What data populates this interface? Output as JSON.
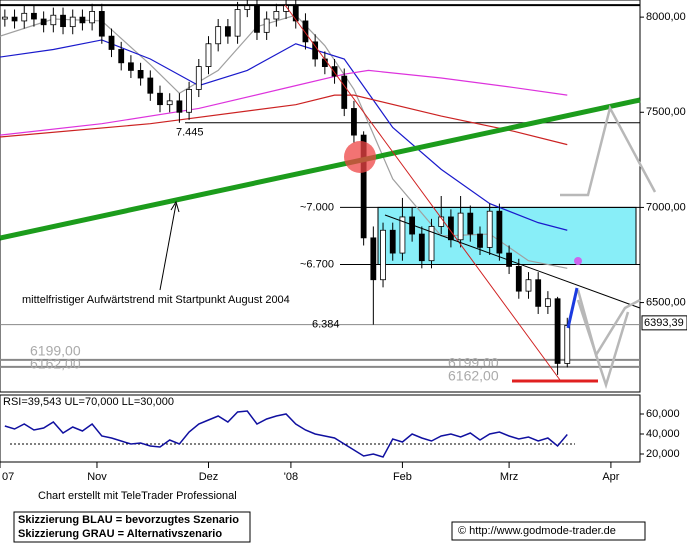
{
  "chart_data": [
    {
      "type": "candlestick",
      "x": [
        0,
        2,
        4,
        6,
        8,
        10,
        12,
        14,
        16,
        18,
        20,
        22,
        24,
        26,
        28,
        30,
        32,
        34,
        36,
        38,
        40,
        42,
        44,
        46,
        48,
        50,
        52,
        54,
        56,
        58,
        60,
        62,
        64,
        66,
        68,
        70,
        72,
        74,
        76,
        78,
        80,
        82,
        84,
        86,
        88,
        90,
        92,
        94,
        96,
        98,
        100,
        102,
        104,
        106,
        108,
        110,
        112,
        114,
        116
      ],
      "open": [
        7990,
        8000,
        7980,
        8020,
        7990,
        7960,
        8010,
        7950,
        8000,
        7970,
        8030,
        7900,
        7830,
        7760,
        7720,
        7680,
        7600,
        7540,
        7560,
        7500,
        7620,
        7740,
        7860,
        7950,
        7900,
        8040,
        8060,
        7920,
        7990,
        8030,
        8060,
        7980,
        7870,
        7780,
        7740,
        7690,
        7520,
        7380,
        6840,
        6620,
        6880,
        6760,
        6950,
        6860,
        6720,
        6900,
        6950,
        6830,
        6970,
        6860,
        6790,
        6980,
        6760,
        6690,
        6560,
        6620,
        6480,
        6520,
        6180
      ],
      "high": [
        8040,
        8040,
        8060,
        8060,
        8030,
        8050,
        8050,
        8040,
        8040,
        8070,
        8070,
        7940,
        7870,
        7800,
        7760,
        7720,
        7640,
        7600,
        7600,
        7660,
        7780,
        7900,
        7990,
        7990,
        8080,
        8090,
        8090,
        8030,
        8070,
        8090,
        8090,
        8020,
        7910,
        7820,
        7780,
        7730,
        7560,
        7400,
        6900,
        6920,
        6920,
        7050,
        7000,
        6900,
        6940,
        7060,
        6990,
        7060,
        7010,
        6900,
        7020,
        7020,
        6800,
        6730,
        6660,
        6660,
        6560,
        6530,
        6420
      ],
      "low": [
        7950,
        7940,
        7940,
        7950,
        7920,
        7920,
        7910,
        7910,
        7930,
        7930,
        7860,
        7790,
        7720,
        7680,
        7640,
        7560,
        7500,
        7500,
        7445,
        7460,
        7580,
        7700,
        7820,
        7860,
        7860,
        8000,
        7880,
        7880,
        7950,
        7990,
        7940,
        7830,
        7740,
        7700,
        7650,
        7480,
        7340,
        6800,
        6384,
        6580,
        6720,
        6720,
        6820,
        6680,
        6680,
        6860,
        6790,
        6790,
        6820,
        6750,
        6750,
        6720,
        6650,
        6520,
        6520,
        6440,
        6440,
        6120,
        6160
      ],
      "close": [
        8000,
        7980,
        8020,
        7990,
        7960,
        8010,
        7950,
        8000,
        7970,
        8030,
        7900,
        7830,
        7760,
        7720,
        7680,
        7600,
        7540,
        7560,
        7500,
        7620,
        7740,
        7860,
        7950,
        7900,
        8040,
        8060,
        7920,
        7990,
        8030,
        8060,
        7980,
        7870,
        7780,
        7740,
        7690,
        7520,
        7380,
        6840,
        6620,
        6880,
        6760,
        6950,
        6860,
        6720,
        6900,
        6950,
        6830,
        6970,
        6860,
        6790,
        6980,
        6760,
        6690,
        6560,
        6620,
        6480,
        6520,
        6180,
        6380
      ],
      "up_color": "#ffffff",
      "down_color": "#000000",
      "xlim": [
        -1,
        131
      ],
      "xticks": [
        {
          "value": -1,
          "label": "07"
        },
        {
          "value": 19,
          "label": "Nov"
        },
        {
          "value": 42,
          "label": "Dez"
        },
        {
          "value": 59,
          "label": "'08"
        },
        {
          "value": 82,
          "label": "Feb"
        },
        {
          "value": 104,
          "label": "Mrz"
        },
        {
          "value": 125,
          "label": "Apr"
        }
      ],
      "ylim": [
        6030,
        8090
      ],
      "yticks": [
        {
          "value": 8000,
          "label": "8000,00"
        },
        {
          "value": 7500,
          "label": "7500,00"
        },
        {
          "value": 7000,
          "label": "7000,00"
        },
        {
          "value": 6500,
          "label": "6500,00"
        }
      ],
      "last_price": {
        "value": 6393.39,
        "label": "6393,39"
      },
      "overlays": [
        {
          "color": "#a0a0a0",
          "x": [
            -1,
            10,
            20,
            30,
            36,
            44,
            52,
            60,
            66,
            72,
            80,
            90,
            100,
            108,
            116
          ],
          "values": [
            7900,
            7990,
            7980,
            7750,
            7600,
            7720,
            7950,
            8010,
            7850,
            7620,
            7150,
            6850,
            6860,
            6720,
            6680
          ]
        },
        {
          "color": "#1a1acc",
          "x": [
            -1,
            10,
            20,
            30,
            40,
            50,
            60,
            70,
            80,
            90,
            100,
            110,
            116
          ],
          "values": [
            7790,
            7830,
            7880,
            7780,
            7640,
            7720,
            7860,
            7780,
            7420,
            7200,
            7020,
            6920,
            6880
          ]
        },
        {
          "color": "#dd33dd",
          "x": [
            -1,
            20,
            40,
            60,
            70,
            75,
            90,
            105,
            116
          ],
          "values": [
            7380,
            7440,
            7520,
            7640,
            7700,
            7720,
            7680,
            7630,
            7590
          ]
        },
        {
          "color": "#cc2222",
          "x": [
            -1,
            30,
            60,
            68,
            72,
            90,
            105,
            116
          ],
          "values": [
            7370,
            7440,
            7540,
            7590,
            7590,
            7480,
            7400,
            7330
          ]
        }
      ],
      "top_line": 8063,
      "levels": [
        {
          "value": 7445,
          "label": "7.445",
          "color": "#000000"
        },
        {
          "value": 7000,
          "label": "~7.000",
          "color": "#000000"
        },
        {
          "value": 6700,
          "label": "~6.700",
          "color": "#000000"
        },
        {
          "value": 6384,
          "label": "6.384",
          "color": "#888888"
        },
        {
          "value": 6199,
          "label": "6199,00",
          "color": "#888888"
        },
        {
          "value": 6162,
          "label": "6162,00",
          "color": "#888888"
        }
      ],
      "zone_color": "#88eef8",
      "annotation": "mittelfristiger Aufwärtstrend mit Startpunkt August 2004"
    },
    {
      "type": "line",
      "title": "RSI=39,543 UL=70,000 LL=30,000",
      "color": "#1010a0",
      "x": [
        0,
        2,
        4,
        6,
        8,
        10,
        12,
        14,
        16,
        18,
        20,
        22,
        24,
        26,
        28,
        30,
        32,
        34,
        36,
        38,
        40,
        42,
        44,
        46,
        48,
        50,
        52,
        54,
        56,
        58,
        60,
        62,
        64,
        66,
        68,
        70,
        72,
        74,
        76,
        78,
        80,
        82,
        84,
        86,
        88,
        90,
        92,
        94,
        96,
        98,
        100,
        102,
        104,
        106,
        108,
        110,
        112,
        114,
        116
      ],
      "values": [
        48,
        45,
        50,
        44,
        46,
        52,
        41,
        47,
        43,
        50,
        38,
        36,
        33,
        30,
        31,
        28,
        27,
        34,
        30,
        42,
        50,
        54,
        58,
        52,
        62,
        63,
        50,
        55,
        58,
        60,
        50,
        44,
        40,
        38,
        36,
        30,
        24,
        18,
        20,
        17,
        35,
        32,
        40,
        36,
        33,
        38,
        40,
        37,
        41,
        34,
        40,
        42,
        38,
        35,
        37,
        33,
        36,
        28,
        39.543
      ],
      "lower_band": 30,
      "ylim": [
        12,
        79
      ],
      "yticks": [
        {
          "value": 60,
          "label": "60,000"
        },
        {
          "value": 40,
          "label": "40,000"
        },
        {
          "value": 20,
          "label": "20,000"
        }
      ]
    }
  ],
  "footer": {
    "credit": "Chart erstellt mit TeleTrader Professional",
    "legend_blue": "Skizzierung BLAU = bevorzugtes Szenario",
    "legend_gray": "Skizzierung GRAU = Alternativszenario",
    "copyright": "© http://www.godmode-trader.de"
  }
}
